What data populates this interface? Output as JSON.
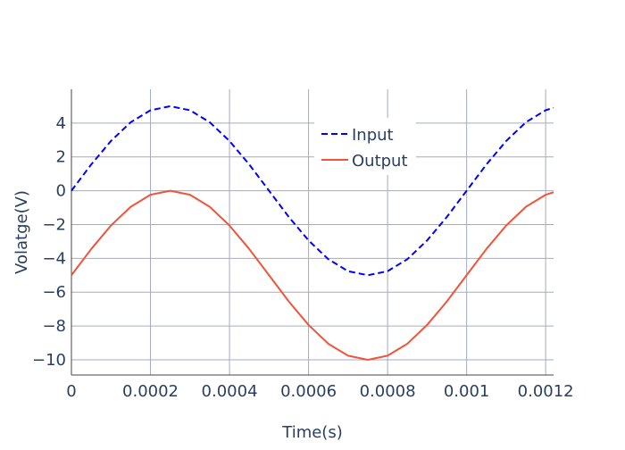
{
  "chart_data": {
    "type": "line",
    "title": "",
    "xlabel": "Time(s)",
    "ylabel": "Volatge(V)",
    "xlim": [
      0,
      0.00122
    ],
    "ylim": [
      -10.9,
      6.0
    ],
    "grid": true,
    "legend_position": "top-right",
    "x_ticks": [
      {
        "value": 0,
        "label": "0"
      },
      {
        "value": 0.0002,
        "label": "0.0002"
      },
      {
        "value": 0.0004,
        "label": "0.0004"
      },
      {
        "value": 0.0006,
        "label": "0.0006"
      },
      {
        "value": 0.0008,
        "label": "0.0008"
      },
      {
        "value": 0.001,
        "label": "0.001"
      },
      {
        "value": 0.0012,
        "label": "0.0012"
      }
    ],
    "y_ticks": [
      {
        "value": 4,
        "label": "4"
      },
      {
        "value": 2,
        "label": "2"
      },
      {
        "value": 0,
        "label": "0"
      },
      {
        "value": -2,
        "label": "−2"
      },
      {
        "value": -4,
        "label": "−4"
      },
      {
        "value": -6,
        "label": "−6"
      },
      {
        "value": -8,
        "label": "−8"
      },
      {
        "value": -10,
        "label": "−10"
      }
    ],
    "x": [
      0,
      5e-05,
      0.0001,
      0.00015,
      0.0002,
      0.00025,
      0.0003,
      0.00035,
      0.0004,
      0.00045,
      0.0005,
      0.00055,
      0.0006,
      0.00065,
      0.0007,
      0.00075,
      0.0008,
      0.00085,
      0.0009,
      0.00095,
      0.001,
      0.00105,
      0.0011,
      0.00115,
      0.0012,
      0.00122
    ],
    "series": [
      {
        "name": "Input",
        "color": "#0000ff",
        "dash": "dashed",
        "values": [
          0.0,
          1.55,
          2.94,
          4.05,
          4.76,
          5.0,
          4.76,
          4.05,
          2.94,
          1.55,
          0.0,
          -1.55,
          -2.94,
          -4.05,
          -4.76,
          -5.0,
          -4.76,
          -4.05,
          -2.94,
          -1.55,
          0.0,
          1.55,
          2.94,
          4.05,
          4.76,
          4.91
        ]
      },
      {
        "name": "Output",
        "color": "#ef553b",
        "dash": "solid",
        "values": [
          -5.0,
          -3.45,
          -2.06,
          -0.95,
          -0.24,
          0.0,
          -0.24,
          -0.95,
          -2.06,
          -3.45,
          -5.0,
          -6.55,
          -7.94,
          -9.05,
          -9.76,
          -10.0,
          -9.76,
          -9.05,
          -7.94,
          -6.55,
          -5.0,
          -3.45,
          -2.06,
          -0.95,
          -0.24,
          -0.09
        ]
      }
    ]
  }
}
